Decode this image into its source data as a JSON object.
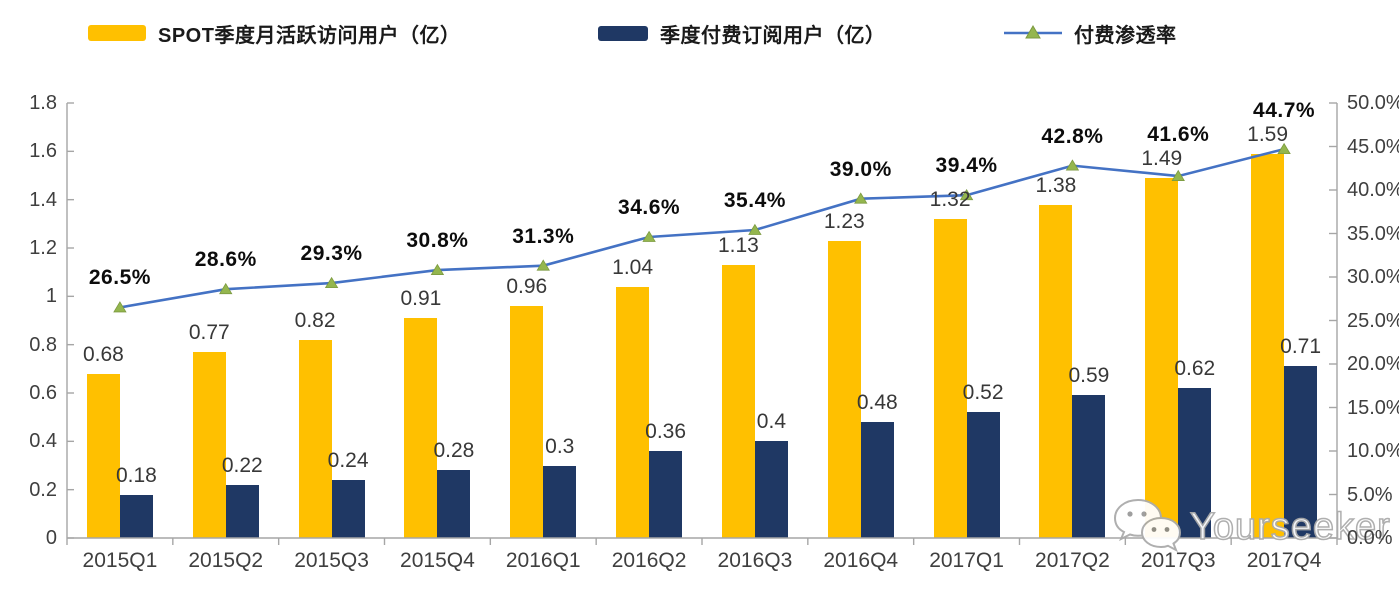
{
  "legend": [
    {
      "label": "SPOT季度月活跃访问用户（亿）",
      "type": "bar"
    },
    {
      "label": "季度付费订阅用户（亿）",
      "type": "bar"
    },
    {
      "label": "付费渗透率",
      "type": "line"
    }
  ],
  "colors": {
    "mau_bar": "#FFC000",
    "subs_bar": "#1F3864",
    "penetration_line": "#4472C4",
    "penetration_marker": "#94B64E",
    "penetration_marker_edge": "#7C9A40",
    "axis": "#A6A6A6"
  },
  "watermark": {
    "text": "Yourseeker",
    "icon": "wechat-bubbles-icon"
  },
  "chart_data": {
    "type": "bar+line",
    "categories": [
      "2015Q1",
      "2015Q2",
      "2015Q3",
      "2015Q4",
      "2016Q1",
      "2016Q2",
      "2016Q3",
      "2016Q4",
      "2017Q1",
      "2017Q2",
      "2017Q3",
      "2017Q4"
    ],
    "series": [
      {
        "name": "SPOT季度月活跃访问用户（亿）",
        "type": "bar",
        "axis": "left",
        "values": [
          0.68,
          0.77,
          0.82,
          0.91,
          0.96,
          1.04,
          1.13,
          1.23,
          1.32,
          1.38,
          1.49,
          1.59
        ],
        "labels": [
          "0.68",
          "0.77",
          "0.82",
          "0.91",
          "0.96",
          "1.04",
          "1.13",
          "1.23",
          "1.32",
          "1.38",
          "1.49",
          "1.59"
        ]
      },
      {
        "name": "季度付费订阅用户（亿）",
        "type": "bar",
        "axis": "left",
        "values": [
          0.18,
          0.22,
          0.24,
          0.28,
          0.3,
          0.36,
          0.4,
          0.48,
          0.52,
          0.59,
          0.62,
          0.71
        ],
        "labels": [
          "0.18",
          "0.22",
          "0.24",
          "0.28",
          "0.3",
          "0.36",
          "0.4",
          "0.48",
          "0.52",
          "0.59",
          "0.62",
          "0.71"
        ]
      },
      {
        "name": "付费渗透率",
        "type": "line",
        "axis": "right",
        "values": [
          26.5,
          28.6,
          29.3,
          30.8,
          31.3,
          34.6,
          35.4,
          39.0,
          39.4,
          42.8,
          41.6,
          44.7
        ],
        "labels": [
          "26.5%",
          "28.6%",
          "29.3%",
          "30.8%",
          "31.3%",
          "34.6%",
          "35.4%",
          "39.0%",
          "39.4%",
          "42.8%",
          "41.6%",
          "44.7%"
        ]
      }
    ],
    "left_axis": {
      "min": 0,
      "max": 1.8,
      "tick_labels": [
        "0",
        "0.2",
        "0.4",
        "0.6",
        "0.8",
        "1",
        "1.2",
        "1.4",
        "1.6",
        "1.8"
      ]
    },
    "right_axis": {
      "min": 0,
      "max": 50,
      "unit": "%",
      "tick_labels": [
        "0.0%",
        "5.0%",
        "10.0%",
        "15.0%",
        "20.0%",
        "25.0%",
        "30.0%",
        "35.0%",
        "40.0%",
        "45.0%",
        "50.0%"
      ]
    },
    "grid": false,
    "legend_position": "top"
  }
}
